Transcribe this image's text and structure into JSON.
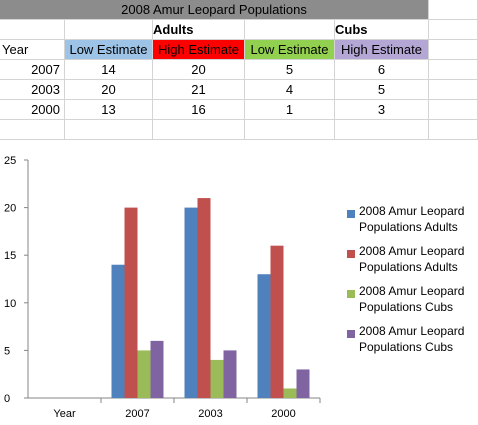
{
  "table": {
    "title": "2008 Amur Leopard Populations",
    "group_adults": "Adults",
    "group_cubs": "Cubs",
    "headers": [
      "Year",
      "Low Estimate",
      "High Estimate",
      "Low Estimate",
      "High Estimate"
    ],
    "rows": [
      [
        "2007",
        "14",
        "20",
        "5",
        "6"
      ],
      [
        "2003",
        "20",
        "21",
        "4",
        "5"
      ],
      [
        "2000",
        "13",
        "16",
        "1",
        "3"
      ]
    ]
  },
  "colors": {
    "title_bg": "#8c8c8c",
    "low_adult": "#9dc3e6",
    "high_adult": "#ff0000",
    "low_cub": "#92d050",
    "high_cub": "#b4a7d6"
  },
  "chart_data": {
    "type": "bar",
    "categories": [
      "Year",
      "2007",
      "2003",
      "2000"
    ],
    "series": [
      {
        "name": "2008 Amur Leopard Populations Adults",
        "values": [
          null,
          14,
          20,
          13
        ],
        "color": "#4f81bd"
      },
      {
        "name": "2008 Amur Leopard Populations Adults",
        "values": [
          null,
          20,
          21,
          16
        ],
        "color": "#c0504d"
      },
      {
        "name": "2008 Amur Leopard Populations Cubs",
        "values": [
          null,
          5,
          4,
          1
        ],
        "color": "#9bbb59"
      },
      {
        "name": "2008 Amur Leopard Populations Cubs",
        "values": [
          null,
          6,
          5,
          3
        ],
        "color": "#8064a2"
      }
    ],
    "ylim": [
      0,
      25
    ],
    "yticks": [
      "0",
      "5",
      "10",
      "15",
      "20",
      "25"
    ],
    "grid": false,
    "legend": "right"
  }
}
